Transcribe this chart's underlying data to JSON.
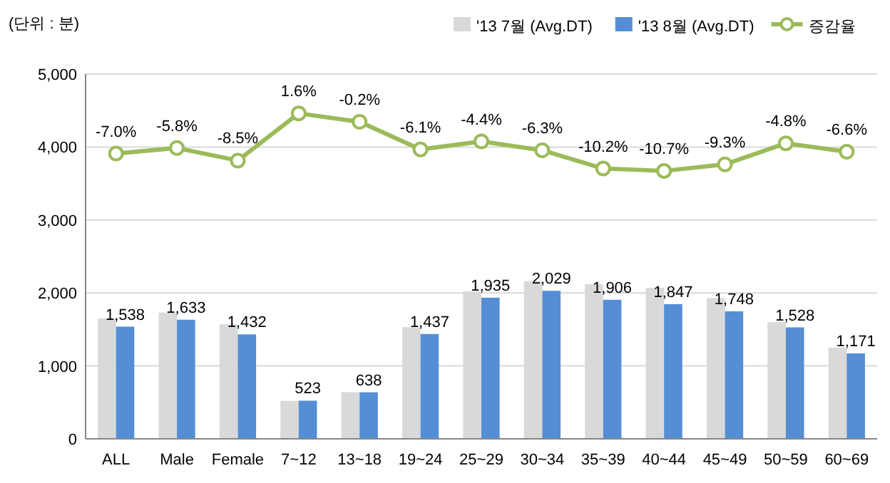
{
  "chart_data": {
    "type": "bar",
    "ylabel": "(단위 : 분)",
    "categories": [
      "ALL",
      "Male",
      "Female",
      "7~12",
      "13~18",
      "19~24",
      "25~29",
      "30~34",
      "35~39",
      "40~44",
      "45~49",
      "50~59",
      "60~69"
    ],
    "series": [
      {
        "name": "'13 7월 (Avg.DT)",
        "color": "#d9d9d9",
        "values": [
          1650,
          1730,
          1570,
          520,
          640,
          1530,
          2020,
          2160,
          2120,
          2070,
          1930,
          1600,
          1250
        ]
      },
      {
        "name": "'13 8월 (Avg.DT)",
        "color": "#558ed5",
        "values": [
          1538,
          1633,
          1432,
          523,
          638,
          1437,
          1935,
          2029,
          1906,
          1847,
          1748,
          1528,
          1171
        ],
        "value_labels": [
          "1,538",
          "1,633",
          "1,432",
          "523",
          "638",
          "1,437",
          "1,935",
          "2,029",
          "1,906",
          "1,847",
          "1,748",
          "1,528",
          "1,171"
        ]
      },
      {
        "name": "증감율",
        "type": "line",
        "axis": "y2",
        "color": "#9bbb59",
        "marker": "circle",
        "values": [
          -7.0,
          -5.8,
          -8.5,
          1.6,
          -0.2,
          -6.1,
          -4.4,
          -6.3,
          -10.2,
          -10.7,
          -9.3,
          -4.8,
          -6.6
        ],
        "value_labels": [
          "-7.0%",
          "-5.8%",
          "-8.5%",
          "1.6%",
          "-0.2%",
          "-6.1%",
          "-4.4%",
          "-6.3%",
          "-10.2%",
          "-10.7%",
          "-9.3%",
          "-4.8%",
          "-6.6%"
        ]
      }
    ],
    "ylim": [
      0,
      5000
    ],
    "yticks": [
      {
        "value": 0,
        "label": "0"
      },
      {
        "value": 1000,
        "label": "1,000"
      },
      {
        "value": 2000,
        "label": "2,000"
      },
      {
        "value": 3000,
        "label": "3,000"
      },
      {
        "value": 4000,
        "label": "4,000"
      },
      {
        "value": 5000,
        "label": "5,000"
      }
    ],
    "y2lim": [
      -68,
      10
    ],
    "tick_labels": "y",
    "grid": "y",
    "legend": "top right"
  }
}
